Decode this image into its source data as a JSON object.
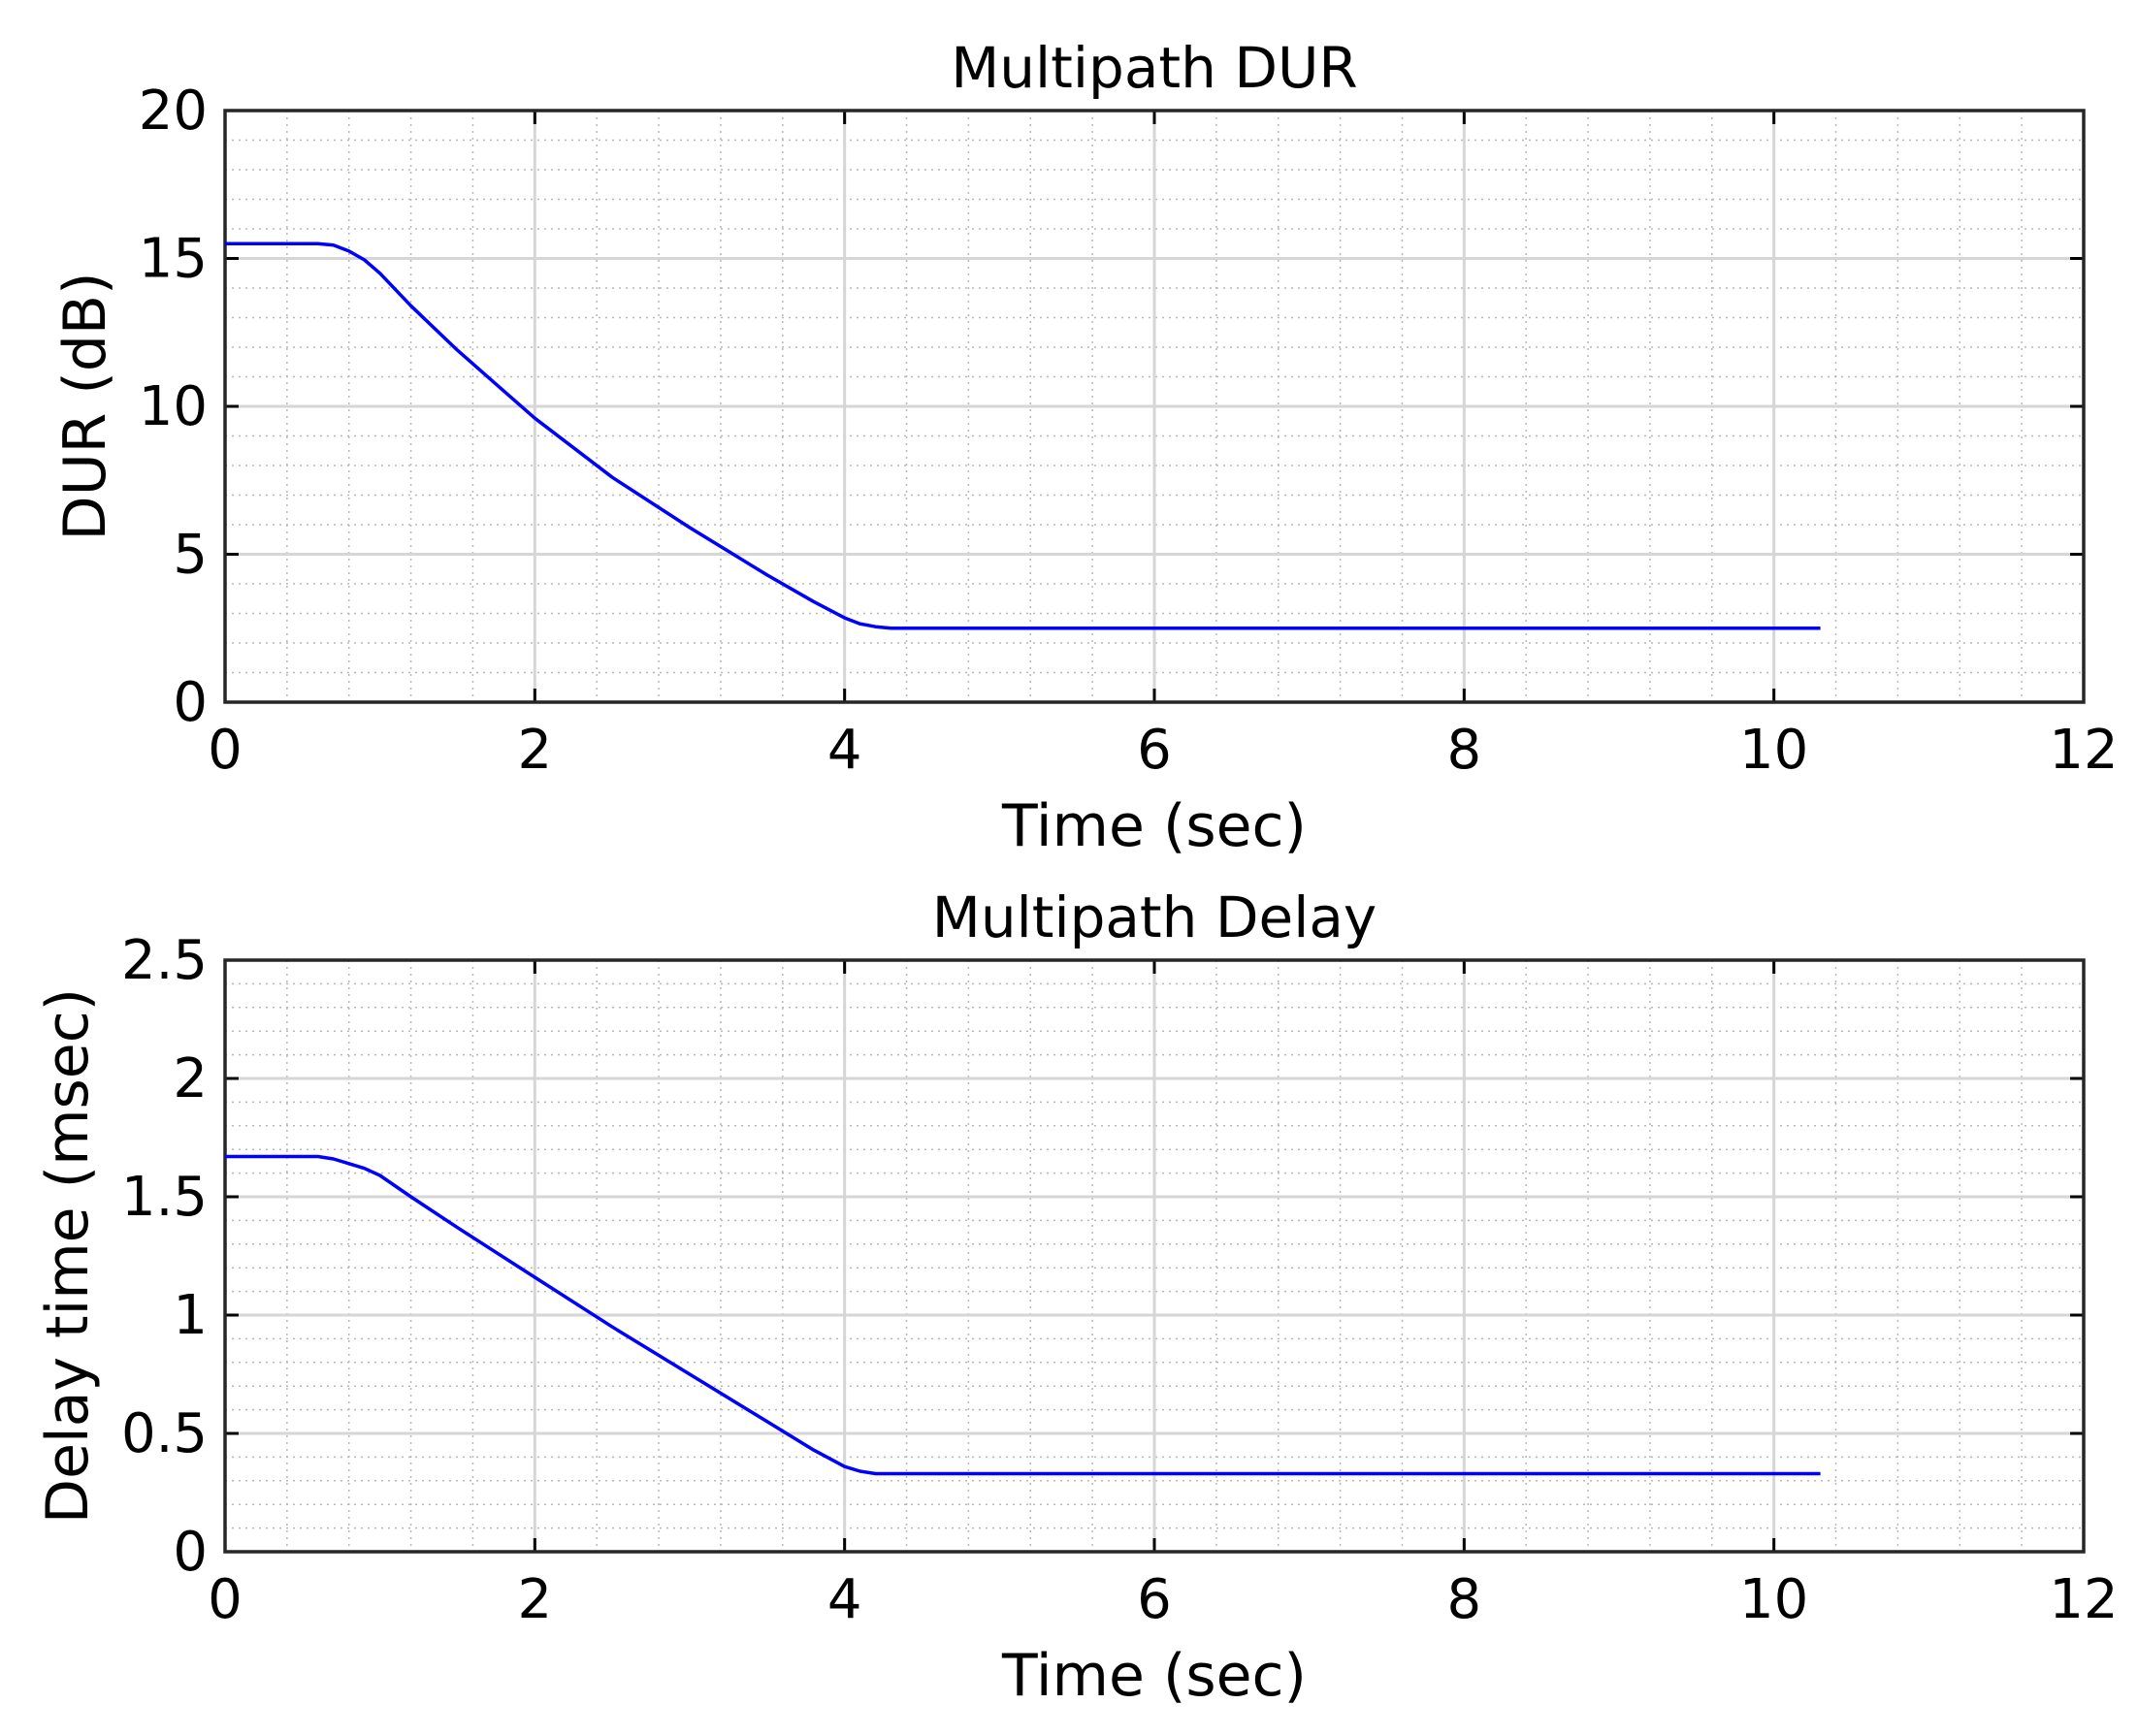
{
  "chart_data": [
    {
      "type": "line",
      "title": "Multipath DUR",
      "xlabel": "Time (sec)",
      "ylabel": "DUR (dB)",
      "xlim": [
        0,
        12
      ],
      "ylim": [
        0,
        20
      ],
      "xticks": [
        "0",
        "2",
        "4",
        "6",
        "8",
        "10",
        "12"
      ],
      "yticks": [
        "0",
        "5",
        "10",
        "15",
        "20"
      ],
      "grid": true,
      "minor_grid": true,
      "series_color": "#0000ff",
      "series": [
        {
          "x": [
            0,
            0.3,
            0.6,
            0.7,
            0.8,
            0.9,
            1.0,
            1.2,
            1.5,
            2.0,
            2.5,
            3.0,
            3.5,
            3.8,
            4.0,
            4.1,
            4.2,
            4.3,
            5,
            6,
            7,
            8,
            9,
            10,
            10.3
          ],
          "y": [
            15.5,
            15.5,
            15.5,
            15.45,
            15.25,
            14.95,
            14.5,
            13.4,
            11.9,
            9.6,
            7.6,
            5.9,
            4.3,
            3.4,
            2.85,
            2.65,
            2.55,
            2.5,
            2.5,
            2.5,
            2.5,
            2.5,
            2.5,
            2.5,
            2.5
          ]
        }
      ]
    },
    {
      "type": "line",
      "title": "Multipath Delay",
      "xlabel": "Time (sec)",
      "ylabel": "Delay time (msec)",
      "xlim": [
        0,
        12
      ],
      "ylim": [
        0,
        2.5
      ],
      "xticks": [
        "0",
        "2",
        "4",
        "6",
        "8",
        "10",
        "12"
      ],
      "yticks": [
        "0",
        "0.5",
        "1",
        "1.5",
        "2",
        "2.5"
      ],
      "grid": true,
      "minor_grid": true,
      "series_color": "#0000ff",
      "series": [
        {
          "x": [
            0,
            0.3,
            0.6,
            0.7,
            0.8,
            0.9,
            1.0,
            1.2,
            1.5,
            2.0,
            2.5,
            3.0,
            3.5,
            3.8,
            4.0,
            4.1,
            4.2,
            4.3,
            5,
            6,
            7,
            8,
            9,
            10,
            10.3
          ],
          "y": [
            1.67,
            1.67,
            1.67,
            1.66,
            1.64,
            1.62,
            1.59,
            1.5,
            1.37,
            1.16,
            0.95,
            0.75,
            0.55,
            0.43,
            0.36,
            0.34,
            0.33,
            0.33,
            0.33,
            0.33,
            0.33,
            0.33,
            0.33,
            0.33,
            0.33
          ]
        }
      ]
    }
  ]
}
